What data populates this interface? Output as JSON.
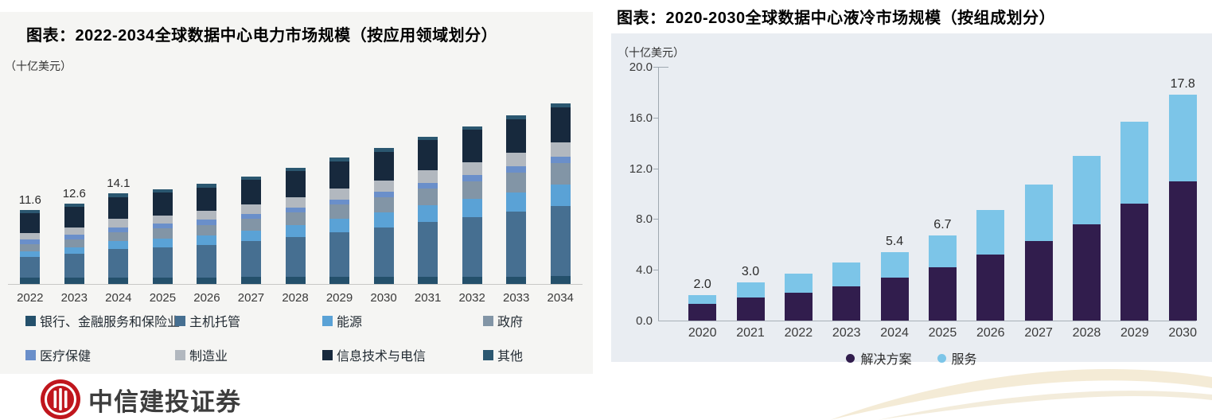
{
  "chart_data": [
    {
      "type": "bar",
      "stacked": true,
      "title": "图表：2022-2034全球数据中心电力市场规模（按应用领域划分）",
      "unit": "（十亿美元）",
      "categories": [
        "2022",
        "2023",
        "2024",
        "2025",
        "2026",
        "2027",
        "2028",
        "2029",
        "2030",
        "2031",
        "2032",
        "2033",
        "2034"
      ],
      "series": [
        {
          "name": "银行、金融服务和保险业",
          "color": "#24506b",
          "values": [
            1.0,
            1.01,
            1.03,
            1.04,
            1.05,
            1.06,
            1.08,
            1.1,
            1.12,
            1.14,
            1.16,
            1.18,
            1.2
          ]
        },
        {
          "name": "主机托管",
          "color": "#466f91",
          "values": [
            3.2,
            3.67,
            4.38,
            4.71,
            5.08,
            5.64,
            6.26,
            7.01,
            7.71,
            8.56,
            9.31,
            10.11,
            11.0
          ]
        },
        {
          "name": "能源",
          "color": "#5aa2d6",
          "values": [
            0.9,
            1.04,
            1.26,
            1.36,
            1.48,
            1.65,
            1.84,
            2.07,
            2.29,
            2.55,
            2.78,
            3.03,
            3.3
          ]
        },
        {
          "name": "政府",
          "color": "#8295a6",
          "values": [
            1.1,
            1.23,
            1.43,
            1.52,
            1.63,
            1.79,
            1.96,
            2.17,
            2.37,
            2.61,
            2.82,
            3.05,
            3.3
          ]
        },
        {
          "name": "医疗保健",
          "color": "#6a8fca",
          "values": [
            0.7,
            0.72,
            0.75,
            0.76,
            0.77,
            0.79,
            0.82,
            0.85,
            0.87,
            0.91,
            0.93,
            0.97,
            1.0
          ]
        },
        {
          "name": "制造业",
          "color": "#b2b8bf",
          "values": [
            1.1,
            1.17,
            1.28,
            1.33,
            1.39,
            1.48,
            1.57,
            1.69,
            1.79,
            1.92,
            2.04,
            2.16,
            2.3
          ]
        },
        {
          "name": "信息技术与电信",
          "color": "#17293d",
          "values": [
            3.1,
            3.24,
            3.46,
            3.56,
            3.68,
            3.85,
            4.04,
            4.27,
            4.49,
            4.75,
            4.98,
            5.23,
            5.5
          ]
        },
        {
          "name": "其他",
          "color": "#2b5770",
          "values": [
            0.5,
            0.51,
            0.52,
            0.52,
            0.52,
            0.53,
            0.54,
            0.55,
            0.56,
            0.57,
            0.58,
            0.59,
            0.6
          ]
        }
      ],
      "totals": [
        11.6,
        12.6,
        14.1,
        14.8,
        15.6,
        16.8,
        18.1,
        19.7,
        21.2,
        23.0,
        24.6,
        26.3,
        28.2
      ],
      "bar_labels": [
        "11.6",
        "12.6",
        "14.1",
        "",
        "",
        "",
        "",
        "",
        "",
        "",
        "",
        "",
        ""
      ],
      "ylim": [
        0,
        30
      ],
      "y_axis_visible": false,
      "grid": false,
      "legend_position": "bottom"
    },
    {
      "type": "bar",
      "stacked": true,
      "title": "图表：2020-2030全球数据中心液冷市场规模（按组成划分）",
      "unit": "（十亿美元）",
      "categories": [
        "2020",
        "2021",
        "2022",
        "2023",
        "2024",
        "2025",
        "2026",
        "2027",
        "2028",
        "2029",
        "2030"
      ],
      "series": [
        {
          "name": "解决方案",
          "color": "#311d4d",
          "values": [
            1.3,
            1.8,
            2.2,
            2.7,
            3.4,
            4.2,
            5.2,
            6.3,
            7.6,
            9.2,
            11.0
          ]
        },
        {
          "name": "服务",
          "color": "#7cc5e8",
          "values": [
            0.7,
            1.2,
            1.5,
            1.9,
            2.0,
            2.5,
            3.5,
            4.4,
            5.4,
            6.5,
            6.8
          ]
        }
      ],
      "totals": [
        2.0,
        3.0,
        3.7,
        4.6,
        5.4,
        6.7,
        8.7,
        10.7,
        13.0,
        15.7,
        17.8
      ],
      "bar_labels": [
        "2.0",
        "3.0",
        "",
        "",
        "5.4",
        "6.7",
        "",
        "",
        "",
        "",
        "17.8"
      ],
      "y_ticks": [
        "20.0",
        "16.0",
        "12.0",
        "8.0",
        "4.0",
        "0.0"
      ],
      "ylim": [
        0,
        20
      ],
      "grid": false,
      "legend_position": "bottom"
    }
  ],
  "footer": {
    "brand_text": "中信建投证券",
    "logo_color": "#c0161d"
  },
  "decor": {
    "swoosh_color": "#f2e7cf"
  }
}
